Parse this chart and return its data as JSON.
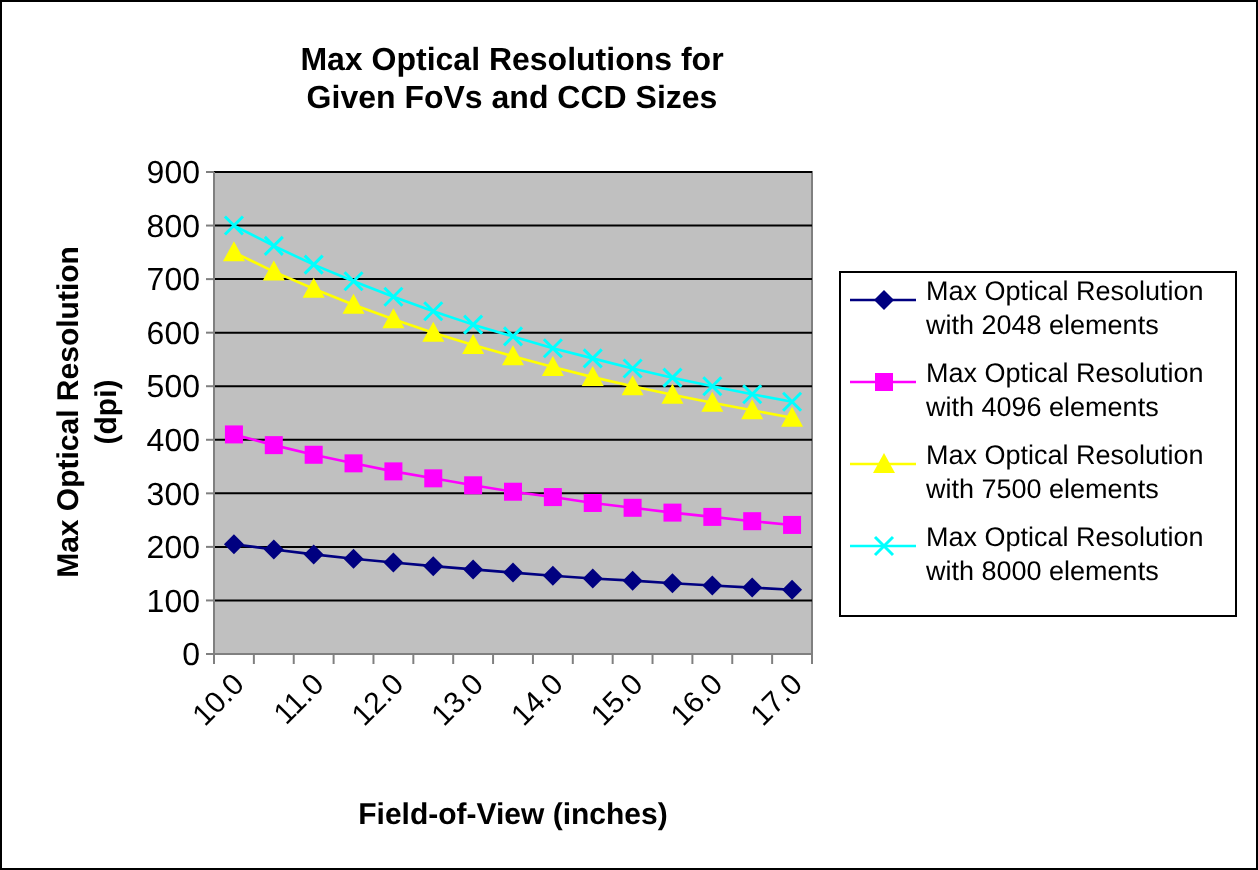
{
  "chart_data": {
    "type": "line",
    "title": "Max Optical Resolutions for\nGiven FoVs and CCD Sizes",
    "xlabel": "Field-of-View (inches)",
    "ylabel": "Max Optical Resolution\n(dpi)",
    "categories": [
      "10.0",
      null,
      "11.0",
      null,
      "12.0",
      null,
      "13.0",
      null,
      "14.0",
      null,
      "15.0",
      null,
      "16.0",
      null,
      "17.0"
    ],
    "ylim": [
      0,
      900
    ],
    "yticks": [
      0,
      100,
      200,
      300,
      400,
      500,
      600,
      700,
      800,
      900
    ],
    "grid": "y",
    "legend": "right",
    "series": [
      {
        "name": "Max Optical Resolution\nwith 2048 elements",
        "color": "#000080",
        "marker": "diamond",
        "values": [
          205,
          195,
          186,
          178,
          171,
          164,
          158,
          152,
          146,
          141,
          137,
          132,
          128,
          124,
          120
        ]
      },
      {
        "name": "Max Optical Resolution\nwith 4096 elements",
        "color": "#ff00ff",
        "marker": "square",
        "values": [
          410,
          390,
          372,
          356,
          341,
          328,
          315,
          303,
          293,
          282,
          273,
          264,
          256,
          248,
          241
        ]
      },
      {
        "name": "Max Optical Resolution\nwith 7500 elements",
        "color": "#ffff00",
        "marker": "triangle",
        "values": [
          750,
          714,
          682,
          652,
          625,
          600,
          577,
          556,
          536,
          517,
          500,
          484,
          469,
          455,
          441
        ]
      },
      {
        "name": "Max Optical Resolution\nwith 8000 elements",
        "color": "#00ffff",
        "marker": "cross",
        "values": [
          800,
          762,
          727,
          696,
          667,
          640,
          615,
          593,
          571,
          552,
          533,
          516,
          500,
          485,
          471
        ]
      }
    ]
  }
}
